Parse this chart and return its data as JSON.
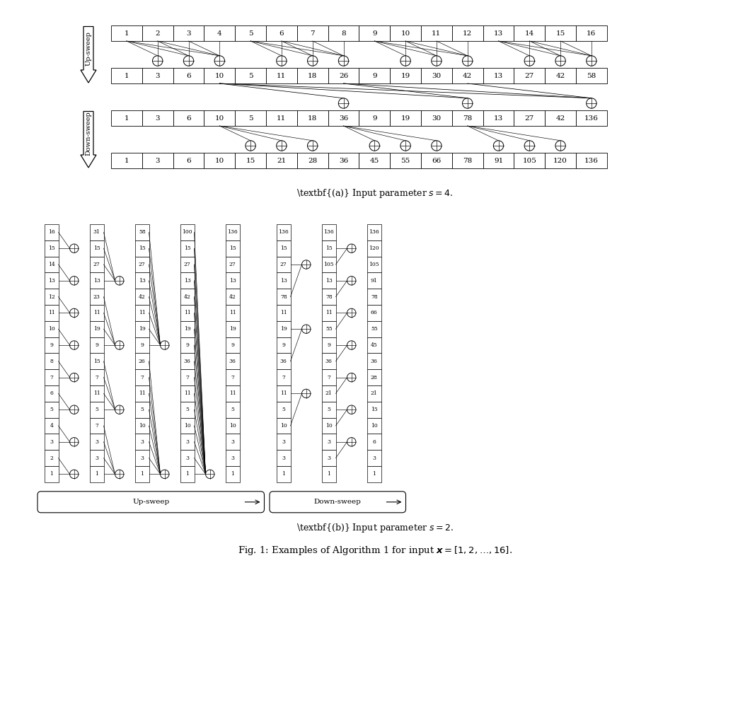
{
  "fig_width": 10.6,
  "fig_height": 10.18,
  "bg_color": "#ffffff",
  "part_a": {
    "row1": [
      1,
      2,
      3,
      4,
      5,
      6,
      7,
      8,
      9,
      10,
      11,
      12,
      13,
      14,
      15,
      16
    ],
    "row2": [
      1,
      3,
      6,
      10,
      5,
      11,
      18,
      26,
      9,
      19,
      30,
      42,
      13,
      27,
      42,
      58
    ],
    "row3": [
      1,
      3,
      6,
      10,
      5,
      11,
      18,
      36,
      9,
      19,
      30,
      78,
      13,
      27,
      42,
      136
    ],
    "row4": [
      1,
      3,
      6,
      10,
      15,
      21,
      28,
      36,
      45,
      55,
      66,
      78,
      91,
      105,
      120,
      136
    ],
    "caption": "(\\textbf{a}) Input parameter $s = 4$."
  },
  "part_b": {
    "up_cols": [
      [
        16,
        15,
        14,
        13,
        12,
        11,
        10,
        9,
        8,
        7,
        6,
        5,
        4,
        3,
        2,
        1
      ],
      [
        31,
        15,
        27,
        13,
        23,
        11,
        19,
        9,
        15,
        7,
        11,
        5,
        7,
        3,
        3,
        1
      ],
      [
        58,
        15,
        27,
        13,
        42,
        11,
        19,
        9,
        26,
        7,
        11,
        5,
        10,
        3,
        3,
        1
      ],
      [
        100,
        15,
        27,
        13,
        42,
        11,
        19,
        9,
        36,
        7,
        11,
        5,
        10,
        3,
        3,
        1
      ],
      [
        136,
        15,
        27,
        13,
        42,
        11,
        19,
        9,
        36,
        7,
        11,
        5,
        10,
        3,
        3,
        1
      ]
    ],
    "down_cols": [
      [
        136,
        15,
        27,
        13,
        78,
        11,
        19,
        9,
        36,
        7,
        11,
        5,
        10,
        3,
        3,
        1
      ],
      [
        136,
        15,
        105,
        13,
        78,
        11,
        55,
        9,
        36,
        7,
        21,
        5,
        10,
        3,
        3,
        1
      ],
      [
        136,
        120,
        105,
        91,
        78,
        66,
        55,
        45,
        36,
        28,
        21,
        15,
        10,
        6,
        3,
        1
      ]
    ],
    "caption": "(\\textbf{b}) Input parameter $s = 2$."
  },
  "fig_caption": "Fig. 1: Examples of Algorithm 1 for input $\\boldsymbol{x} = [1, 2, \\ldots, 16]$."
}
